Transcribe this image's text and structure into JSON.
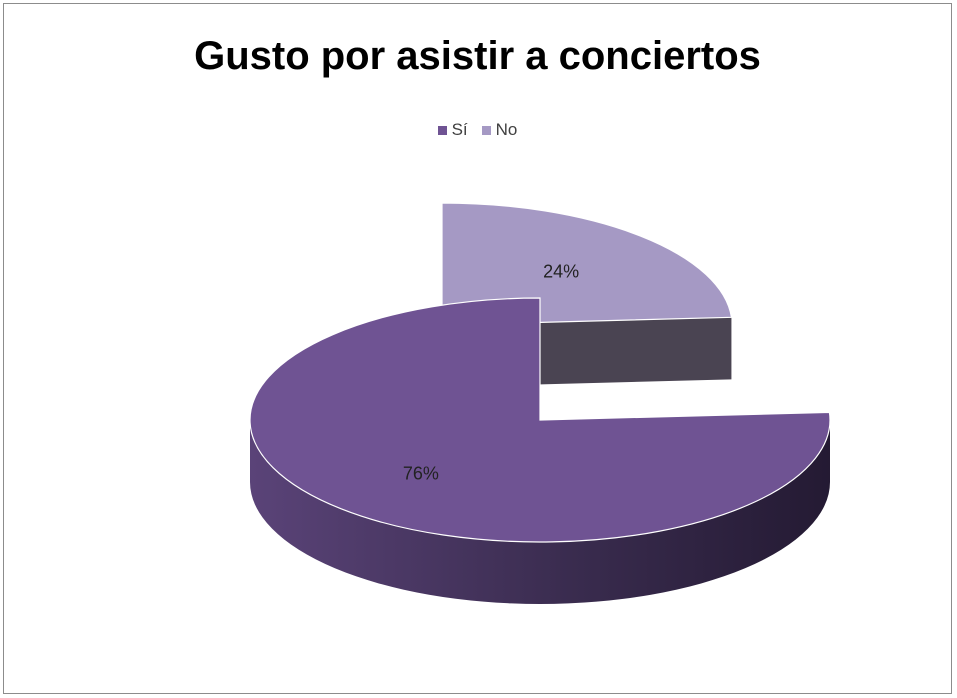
{
  "chart_data": {
    "type": "pie",
    "title": "Gusto por asistir a conciertos",
    "legend_position": "top",
    "three_d": true,
    "exploded": true,
    "categories": [
      "Sí",
      "No"
    ],
    "values": [
      76,
      24
    ],
    "labels": [
      "76%",
      "24%"
    ],
    "colors": [
      "#6f5393",
      "#a599c4"
    ],
    "side_colors": [
      "#3a2c4f",
      "#4a4452"
    ]
  }
}
